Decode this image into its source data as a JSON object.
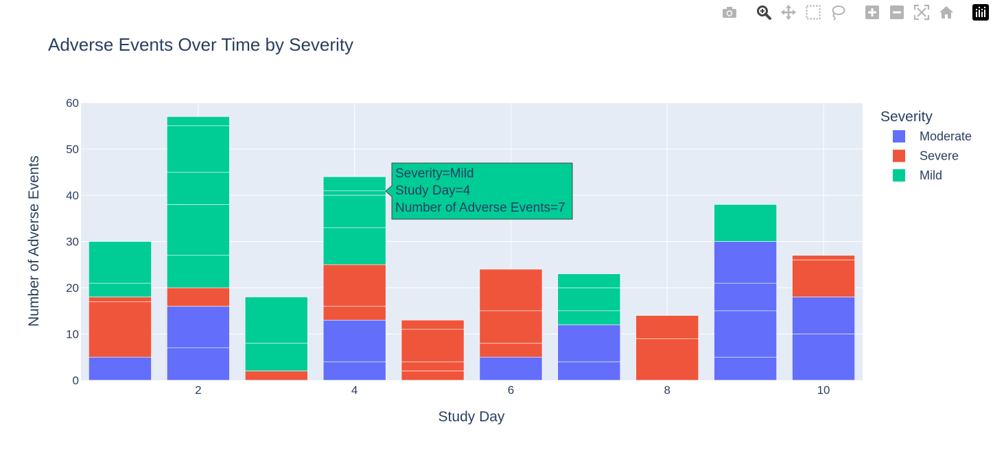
{
  "modebar": {
    "buttons": [
      "camera-icon",
      "zoom-icon",
      "pan-icon",
      "box-select-icon",
      "lasso-select-icon",
      "zoom-in-icon",
      "zoom-out-icon",
      "autoscale-icon",
      "reset-axes-icon",
      "plotly-logo-icon"
    ]
  },
  "colors": {
    "Moderate": "#636efa",
    "Severe": "#ef553b",
    "Mild": "#00cc96",
    "plot_bg": "#e5ecf6",
    "text": "#2a3f5f"
  },
  "chart_data": {
    "type": "bar",
    "barmode": "stack",
    "title": "Adverse Events Over Time by Severity",
    "xlabel": "Study Day",
    "ylabel": "Number of Adverse Events",
    "xlim": [
      0.5,
      10.5
    ],
    "ylim": [
      0,
      60
    ],
    "xticks": [
      2,
      4,
      6,
      8,
      10
    ],
    "yticks": [
      0,
      10,
      20,
      30,
      40,
      50,
      60
    ],
    "grid": true,
    "legend_title": "Severity",
    "legend_position": "right",
    "legend": [
      "Moderate",
      "Severe",
      "Mild"
    ],
    "categories": [
      1,
      2,
      3,
      4,
      5,
      6,
      7,
      8,
      9,
      10
    ],
    "series": [
      {
        "name": "Moderate",
        "segments": [
          [
            5
          ],
          [
            7,
            9
          ],
          [],
          [
            4,
            9
          ],
          [],
          [
            5
          ],
          [
            4,
            8
          ],
          [],
          [
            5,
            10,
            6,
            9
          ],
          [
            10,
            8
          ]
        ]
      },
      {
        "name": "Severe",
        "segments": [
          [
            12,
            1
          ],
          [
            4
          ],
          [
            2
          ],
          [
            3,
            9
          ],
          [
            2,
            2,
            7,
            2
          ],
          [
            3,
            7,
            9
          ],
          [],
          [
            9,
            5
          ],
          [],
          [
            8,
            1
          ]
        ]
      },
      {
        "name": "Mild",
        "segments": [
          [
            3,
            9
          ],
          [
            7,
            11,
            7,
            10,
            2
          ],
          [
            6,
            10
          ],
          [
            8,
            7,
            1,
            3
          ],
          [],
          [],
          [
            3,
            5,
            3
          ],
          [],
          [
            8
          ],
          []
        ]
      }
    ],
    "tooltip": {
      "lines": [
        "Severity=Mild",
        "Study Day=4",
        "Number of Adverse Events=7"
      ]
    }
  }
}
